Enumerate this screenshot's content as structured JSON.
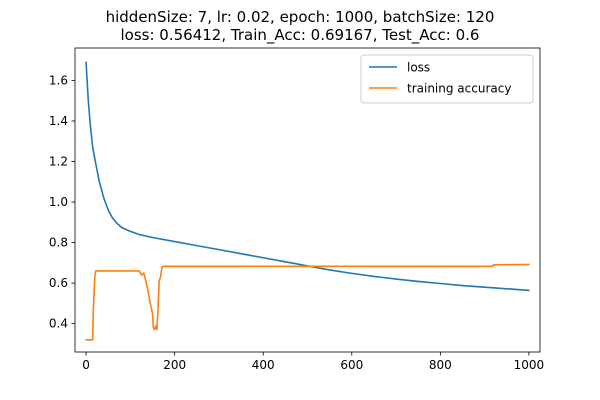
{
  "chart_data": {
    "type": "line",
    "title_lines": [
      "hiddenSize: 7, lr: 0.02, epoch: 1000, batchSize: 120",
      "loss: 0.56412, Train_Acc: 0.69167, Test_Acc: 0.6"
    ],
    "xlabel": "",
    "ylabel": "",
    "xlim": [
      -25,
      1025
    ],
    "ylim": [
      0.26,
      1.76
    ],
    "xticks": [
      0,
      200,
      400,
      600,
      800,
      1000
    ],
    "xtick_labels": [
      "0",
      "200",
      "400",
      "600",
      "800",
      "1000"
    ],
    "yticks": [
      0.4,
      0.6,
      0.8,
      1.0,
      1.2,
      1.4,
      1.6
    ],
    "ytick_labels": [
      "0.4",
      "0.6",
      "0.8",
      "1.0",
      "1.2",
      "1.4",
      "1.6"
    ],
    "grid": false,
    "legend_position": "top-right",
    "series": [
      {
        "name": "loss",
        "color": "#1f77b4",
        "x": [
          0,
          5,
          10,
          15,
          20,
          30,
          40,
          50,
          60,
          70,
          80,
          100,
          120,
          150,
          200,
          250,
          300,
          350,
          400,
          450,
          500,
          550,
          600,
          650,
          700,
          750,
          800,
          850,
          900,
          950,
          1000
        ],
        "y": [
          1.69,
          1.5,
          1.37,
          1.27,
          1.21,
          1.1,
          1.02,
          0.96,
          0.92,
          0.895,
          0.875,
          0.855,
          0.84,
          0.825,
          0.805,
          0.785,
          0.765,
          0.745,
          0.725,
          0.705,
          0.685,
          0.665,
          0.648,
          0.633,
          0.62,
          0.608,
          0.598,
          0.588,
          0.58,
          0.572,
          0.564
        ]
      },
      {
        "name": "training accuracy",
        "color": "#ff7f0e",
        "x": [
          0,
          15,
          16,
          20,
          22,
          25,
          120,
          125,
          130,
          135,
          140,
          145,
          150,
          152,
          155,
          158,
          160,
          163,
          165,
          168,
          170,
          172,
          175,
          180,
          300,
          500,
          600,
          700,
          800,
          918,
          920,
          1000
        ],
        "y": [
          0.32,
          0.32,
          0.45,
          0.64,
          0.66,
          0.66,
          0.66,
          0.64,
          0.65,
          0.61,
          0.56,
          0.5,
          0.45,
          0.38,
          0.37,
          0.39,
          0.37,
          0.5,
          0.61,
          0.63,
          0.66,
          0.68,
          0.683,
          0.683,
          0.683,
          0.683,
          0.683,
          0.683,
          0.683,
          0.683,
          0.69,
          0.692
        ]
      }
    ]
  }
}
